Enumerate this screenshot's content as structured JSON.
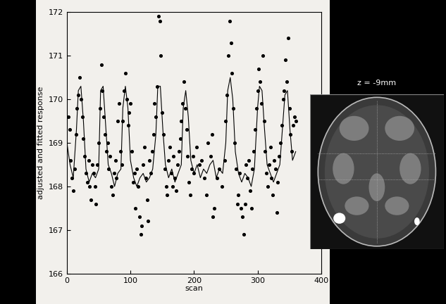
{
  "chart_data": {
    "type": "scatter",
    "x_label": "scan",
    "y_label": "adjusted and fitted response",
    "inset_label": "z = -9mm",
    "xlim": [
      0,
      400
    ],
    "xticks": [
      0,
      100,
      200,
      300,
      400
    ],
    "ylim": [
      166,
      172
    ],
    "yticks": [
      166,
      167,
      168,
      169,
      170,
      171,
      172
    ],
    "grid": false,
    "series": [
      {
        "type": "scatter",
        "marker": "dot",
        "color": "#000000",
        "x": [
          2,
          4,
          6,
          8,
          10,
          12,
          14,
          16,
          18,
          20,
          22,
          24,
          26,
          28,
          30,
          32,
          34,
          36,
          38,
          40,
          42,
          44,
          46,
          48,
          50,
          52,
          54,
          56,
          58,
          60,
          62,
          64,
          66,
          68,
          70,
          72,
          74,
          76,
          78,
          80,
          82,
          84,
          86,
          88,
          90,
          92,
          94,
          96,
          98,
          100,
          102,
          104,
          106,
          108,
          110,
          112,
          114,
          116,
          118,
          120,
          122,
          124,
          126,
          128,
          130,
          132,
          134,
          136,
          138,
          140,
          142,
          144,
          146,
          148,
          150,
          152,
          154,
          156,
          158,
          160,
          162,
          164,
          166,
          168,
          170,
          172,
          174,
          176,
          178,
          180,
          182,
          184,
          186,
          188,
          190,
          192,
          194,
          196,
          198,
          200,
          204,
          208,
          212,
          216,
          220,
          222,
          226,
          228,
          230,
          232,
          236,
          240,
          244,
          248,
          250,
          252,
          254,
          256,
          258,
          260,
          262,
          264,
          266,
          268,
          270,
          272,
          274,
          276,
          278,
          280,
          282,
          284,
          286,
          288,
          290,
          292,
          294,
          296,
          298,
          300,
          302,
          304,
          306,
          308,
          310,
          312,
          314,
          316,
          318,
          320,
          322,
          324,
          326,
          328,
          330,
          332,
          334,
          336,
          338,
          340,
          342,
          344,
          346,
          348,
          350,
          352,
          354,
          356,
          358,
          360
        ],
        "values": [
          169.6,
          169.3,
          168.6,
          168.2,
          167.9,
          168.4,
          169.2,
          169.8,
          170.1,
          170.5,
          170.0,
          169.6,
          169.1,
          168.7,
          168.3,
          168.1,
          168.6,
          168.0,
          167.7,
          168.5,
          168.3,
          168.0,
          167.6,
          168.5,
          169.0,
          169.8,
          170.8,
          170.2,
          169.6,
          169.2,
          168.8,
          169.0,
          168.4,
          168.7,
          168.0,
          167.8,
          168.3,
          168.6,
          168.2,
          169.5,
          169.9,
          168.8,
          168.5,
          169.5,
          170.2,
          170.6,
          170.0,
          169.4,
          169.7,
          169.9,
          168.8,
          168.1,
          168.3,
          167.5,
          168.4,
          168.0,
          167.3,
          166.9,
          167.1,
          168.5,
          168.9,
          168.2,
          167.7,
          167.2,
          168.6,
          168.3,
          168.8,
          169.2,
          169.9,
          169.6,
          170.3,
          171.9,
          171.8,
          171.0,
          169.7,
          169.2,
          168.4,
          168.0,
          167.8,
          168.6,
          168.9,
          168.3,
          168.0,
          168.7,
          168.2,
          167.9,
          168.5,
          168.8,
          169.1,
          169.5,
          169.9,
          170.4,
          169.8,
          169.3,
          168.7,
          168.1,
          167.8,
          168.4,
          168.7,
          168.3,
          168.9,
          168.5,
          168.6,
          168.2,
          167.8,
          169.0,
          168.7,
          169.2,
          167.3,
          167.5,
          168.2,
          168.4,
          168.0,
          168.6,
          169.5,
          170.1,
          171.0,
          171.8,
          171.3,
          170.6,
          169.8,
          169.0,
          168.4,
          167.6,
          167.8,
          168.3,
          167.5,
          167.3,
          166.9,
          167.6,
          168.5,
          168.2,
          168.6,
          167.9,
          167.5,
          168.4,
          168.8,
          169.3,
          169.8,
          170.2,
          170.7,
          170.4,
          169.9,
          171.0,
          169.5,
          168.8,
          168.3,
          168.0,
          168.5,
          168.9,
          168.2,
          167.8,
          168.6,
          168.4,
          167.4,
          168.1,
          168.7,
          169.0,
          169.4,
          170.0,
          170.2,
          170.9,
          170.4,
          171.4,
          169.8,
          169.2,
          168.8,
          169.4,
          169.6,
          169.5
        ]
      },
      {
        "type": "line",
        "line_style": "solid",
        "color": "#000000",
        "x": [
          0,
          5,
          10,
          15,
          18,
          22,
          26,
          30,
          35,
          40,
          45,
          50,
          53,
          57,
          61,
          65,
          70,
          75,
          80,
          85,
          88,
          92,
          96,
          100,
          105,
          110,
          115,
          120,
          125,
          130,
          135,
          140,
          143,
          147,
          151,
          155,
          160,
          165,
          170,
          175,
          180,
          183,
          187,
          191,
          195,
          200,
          205,
          210,
          215,
          220,
          225,
          230,
          235,
          240,
          245,
          250,
          253,
          257,
          261,
          265,
          270,
          275,
          280,
          285,
          290,
          295,
          300,
          303,
          307,
          311,
          315,
          320,
          325,
          330,
          335,
          340,
          343,
          347,
          351,
          355,
          360
        ],
        "values": [
          169.0,
          168.5,
          168.2,
          169.3,
          170.2,
          170.3,
          169.5,
          168.4,
          168.1,
          168.3,
          168.2,
          168.4,
          170.2,
          170.3,
          169.4,
          168.5,
          168.3,
          168.0,
          168.3,
          168.4,
          169.8,
          170.3,
          169.8,
          168.6,
          168.2,
          168.0,
          168.2,
          168.3,
          168.1,
          168.2,
          168.4,
          169.2,
          170.3,
          170.3,
          169.3,
          168.5,
          168.2,
          168.4,
          168.1,
          168.3,
          168.5,
          169.8,
          170.2,
          169.6,
          168.6,
          168.3,
          168.5,
          168.2,
          168.4,
          168.3,
          168.5,
          168.6,
          168.2,
          168.4,
          168.3,
          169.0,
          170.2,
          170.5,
          170.0,
          168.8,
          168.3,
          168.1,
          168.3,
          168.2,
          168.0,
          168.4,
          169.8,
          170.3,
          170.2,
          169.3,
          168.5,
          168.3,
          168.1,
          168.3,
          168.5,
          169.5,
          170.1,
          170.2,
          169.3,
          168.6,
          168.8
        ]
      }
    ]
  }
}
